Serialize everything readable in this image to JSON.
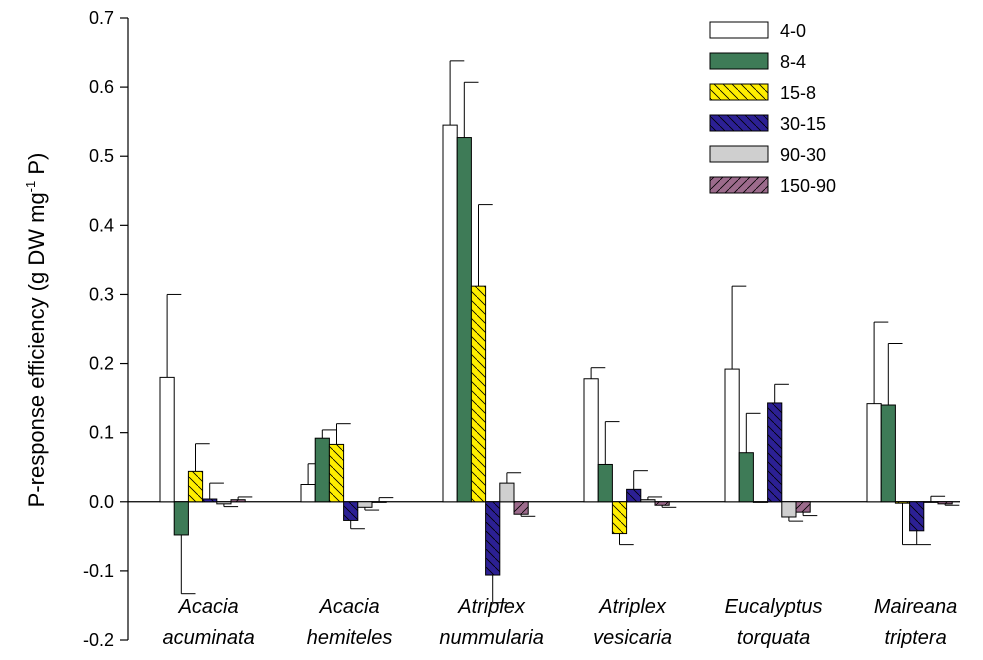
{
  "chart_data": {
    "type": "bar",
    "ylabel": "P-response efficiency (g DW mg",
    "ylabel_sup": "-1",
    "ylabel_end": " P)",
    "ylim": [
      -0.2,
      0.7
    ],
    "yticks": [
      -0.2,
      -0.1,
      0.0,
      0.1,
      0.2,
      0.3,
      0.4,
      0.5,
      0.6,
      0.7
    ],
    "ytick_labels": [
      "-0.2",
      "-0.1",
      "0.0",
      "0.1",
      "0.2",
      "0.3",
      "0.4",
      "0.5",
      "0.6",
      "0.7"
    ],
    "categories": [
      [
        "Acacia",
        "acuminata"
      ],
      [
        "Acacia",
        "hemiteles"
      ],
      [
        "Atriplex",
        "nummularia"
      ],
      [
        "Atriplex",
        "vesicaria"
      ],
      [
        "Eucalyptus",
        "torquata"
      ],
      [
        "Maireana",
        "triptera"
      ]
    ],
    "legend_position": "top-right",
    "grid": false,
    "series": [
      {
        "name": "4-0",
        "fill": "#ffffff",
        "pattern": "none",
        "values": [
          0.18,
          0.025,
          0.545,
          0.178,
          0.192,
          0.142
        ],
        "errors": [
          0.12,
          0.03,
          0.093,
          0.016,
          0.12,
          0.118
        ]
      },
      {
        "name": "8-4",
        "fill": "#3e7b57",
        "pattern": "none",
        "values": [
          -0.048,
          0.092,
          0.527,
          0.054,
          0.071,
          0.14
        ],
        "errors": [
          0.085,
          0.012,
          0.08,
          0.062,
          0.057,
          0.089
        ]
      },
      {
        "name": "15-8",
        "fill": "#ffee00",
        "pattern": "back",
        "values": [
          0.044,
          0.083,
          0.312,
          -0.046,
          0.0,
          -0.002
        ],
        "errors": [
          0.04,
          0.03,
          0.118,
          0.016,
          0.0,
          0.06
        ]
      },
      {
        "name": "30-15",
        "fill": "#2c2094",
        "pattern": "back",
        "values": [
          0.004,
          -0.027,
          -0.106,
          0.018,
          0.143,
          -0.042
        ],
        "errors": [
          0.023,
          0.012,
          0.04,
          0.027,
          0.027,
          0.02
        ]
      },
      {
        "name": "90-30",
        "fill": "#cfcfcf",
        "pattern": "none",
        "values": [
          -0.003,
          -0.008,
          0.027,
          0.003,
          -0.022,
          0.0
        ],
        "errors": [
          0.004,
          0.004,
          0.015,
          0.004,
          0.006,
          0.008
        ]
      },
      {
        "name": "150-90",
        "fill": "#9c6b8c",
        "pattern": "forward",
        "values": [
          0.003,
          0.0,
          -0.018,
          -0.005,
          -0.015,
          -0.003
        ],
        "errors": [
          0.004,
          0.006,
          0.003,
          0.003,
          0.005,
          0.002
        ]
      }
    ]
  }
}
